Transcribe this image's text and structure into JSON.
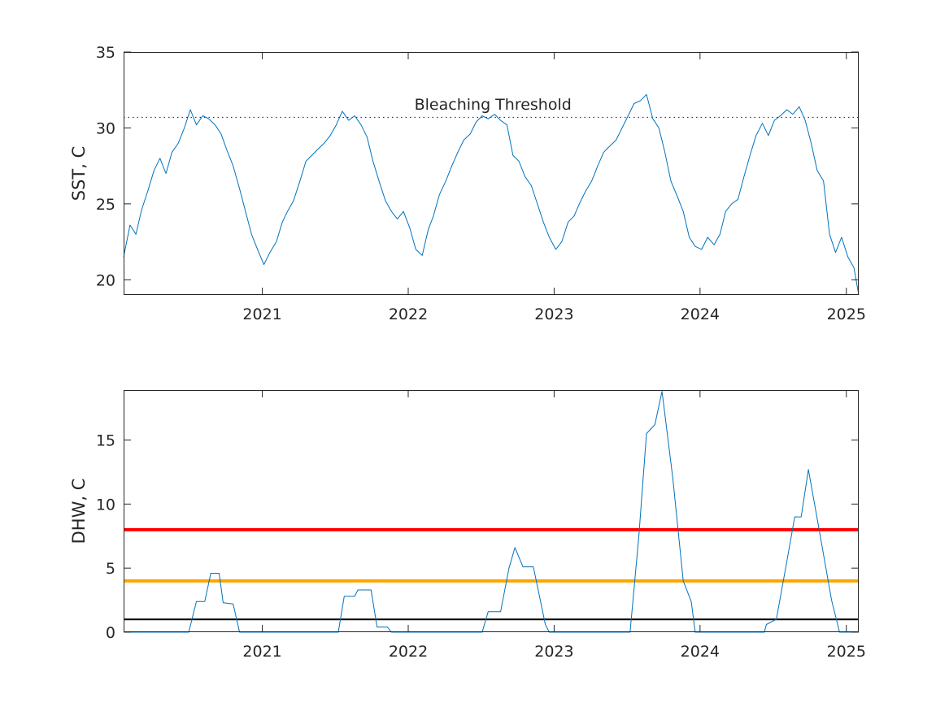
{
  "chart_data": [
    {
      "type": "line",
      "xlabel": "",
      "ylabel": "SST, C",
      "xlim": [
        "2020-01-20",
        "2025-02-01"
      ],
      "ylim": [
        19,
        35
      ],
      "yticks": [
        20,
        25,
        30,
        35
      ],
      "xticks": [
        {
          "value": "2021-01-01",
          "label": "2021"
        },
        {
          "value": "2022-01-01",
          "label": "2022"
        },
        {
          "value": "2023-01-01",
          "label": "2023"
        },
        {
          "value": "2024-01-01",
          "label": "2024"
        },
        {
          "value": "2025-01-01",
          "label": "2025"
        }
      ],
      "grid": false,
      "series": [
        {
          "color": "#0072BD",
          "points": [
            [
              "2020-01-20",
              21.5
            ],
            [
              "2020-02-05",
              23.6
            ],
            [
              "2020-02-20",
              23.0
            ],
            [
              "2020-03-05",
              24.6
            ],
            [
              "2020-03-20",
              25.8
            ],
            [
              "2020-04-05",
              27.2
            ],
            [
              "2020-04-20",
              28.0
            ],
            [
              "2020-05-05",
              27.0
            ],
            [
              "2020-05-20",
              28.4
            ],
            [
              "2020-06-05",
              29.0
            ],
            [
              "2020-06-20",
              30.0
            ],
            [
              "2020-07-05",
              31.2
            ],
            [
              "2020-07-20",
              30.2
            ],
            [
              "2020-08-05",
              30.8
            ],
            [
              "2020-08-20",
              30.6
            ],
            [
              "2020-09-05",
              30.2
            ],
            [
              "2020-09-20",
              29.6
            ],
            [
              "2020-10-05",
              28.5
            ],
            [
              "2020-10-20",
              27.5
            ],
            [
              "2020-11-05",
              26.0
            ],
            [
              "2020-11-20",
              24.5
            ],
            [
              "2020-12-05",
              23.0
            ],
            [
              "2020-12-20",
              22.0
            ],
            [
              "2021-01-05",
              21.0
            ],
            [
              "2021-01-20",
              21.8
            ],
            [
              "2021-02-05",
              22.5
            ],
            [
              "2021-02-20",
              23.8
            ],
            [
              "2021-03-05",
              24.5
            ],
            [
              "2021-03-20",
              25.2
            ],
            [
              "2021-04-05",
              26.5
            ],
            [
              "2021-04-20",
              27.8
            ],
            [
              "2021-05-05",
              28.2
            ],
            [
              "2021-05-20",
              28.6
            ],
            [
              "2021-06-05",
              29.0
            ],
            [
              "2021-06-20",
              29.5
            ],
            [
              "2021-07-05",
              30.2
            ],
            [
              "2021-07-20",
              31.1
            ],
            [
              "2021-08-05",
              30.5
            ],
            [
              "2021-08-20",
              30.8
            ],
            [
              "2021-09-05",
              30.2
            ],
            [
              "2021-09-20",
              29.4
            ],
            [
              "2021-10-05",
              27.8
            ],
            [
              "2021-10-20",
              26.5
            ],
            [
              "2021-11-05",
              25.2
            ],
            [
              "2021-11-20",
              24.5
            ],
            [
              "2021-12-05",
              24.0
            ],
            [
              "2021-12-20",
              24.5
            ],
            [
              "2022-01-05",
              23.4
            ],
            [
              "2022-01-20",
              22.0
            ],
            [
              "2022-02-05",
              21.6
            ],
            [
              "2022-02-20",
              23.3
            ],
            [
              "2022-03-05",
              24.2
            ],
            [
              "2022-03-20",
              25.6
            ],
            [
              "2022-04-05",
              26.5
            ],
            [
              "2022-04-20",
              27.5
            ],
            [
              "2022-05-05",
              28.4
            ],
            [
              "2022-05-20",
              29.2
            ],
            [
              "2022-06-05",
              29.6
            ],
            [
              "2022-06-20",
              30.4
            ],
            [
              "2022-07-05",
              30.8
            ],
            [
              "2022-07-20",
              30.6
            ],
            [
              "2022-08-05",
              30.9
            ],
            [
              "2022-08-20",
              30.5
            ],
            [
              "2022-09-05",
              30.2
            ],
            [
              "2022-09-20",
              28.2
            ],
            [
              "2022-10-05",
              27.8
            ],
            [
              "2022-10-20",
              26.8
            ],
            [
              "2022-11-05",
              26.2
            ],
            [
              "2022-11-20",
              25.0
            ],
            [
              "2022-12-05",
              23.8
            ],
            [
              "2022-12-20",
              22.8
            ],
            [
              "2023-01-05",
              22.0
            ],
            [
              "2023-01-20",
              22.5
            ],
            [
              "2023-02-05",
              23.8
            ],
            [
              "2023-02-20",
              24.2
            ],
            [
              "2023-03-05",
              25.0
            ],
            [
              "2023-03-20",
              25.8
            ],
            [
              "2023-04-05",
              26.5
            ],
            [
              "2023-04-20",
              27.5
            ],
            [
              "2023-05-05",
              28.4
            ],
            [
              "2023-05-20",
              28.8
            ],
            [
              "2023-06-05",
              29.2
            ],
            [
              "2023-06-20",
              30.0
            ],
            [
              "2023-07-05",
              30.8
            ],
            [
              "2023-07-20",
              31.6
            ],
            [
              "2023-08-05",
              31.8
            ],
            [
              "2023-08-20",
              32.2
            ],
            [
              "2023-09-05",
              30.6
            ],
            [
              "2023-09-20",
              30.0
            ],
            [
              "2023-10-05",
              28.4
            ],
            [
              "2023-10-20",
              26.5
            ],
            [
              "2023-11-05",
              25.5
            ],
            [
              "2023-11-20",
              24.5
            ],
            [
              "2023-12-05",
              22.8
            ],
            [
              "2023-12-20",
              22.2
            ],
            [
              "2024-01-05",
              22.0
            ],
            [
              "2024-01-20",
              22.8
            ],
            [
              "2024-02-05",
              22.3
            ],
            [
              "2024-02-20",
              23.0
            ],
            [
              "2024-03-05",
              24.5
            ],
            [
              "2024-03-20",
              25.0
            ],
            [
              "2024-04-05",
              25.3
            ],
            [
              "2024-04-20",
              26.8
            ],
            [
              "2024-05-05",
              28.2
            ],
            [
              "2024-05-20",
              29.5
            ],
            [
              "2024-06-05",
              30.3
            ],
            [
              "2024-06-20",
              29.5
            ],
            [
              "2024-07-05",
              30.5
            ],
            [
              "2024-07-20",
              30.8
            ],
            [
              "2024-08-05",
              31.2
            ],
            [
              "2024-08-20",
              30.9
            ],
            [
              "2024-09-05",
              31.4
            ],
            [
              "2024-09-20",
              30.5
            ],
            [
              "2024-10-05",
              29.0
            ],
            [
              "2024-10-20",
              27.2
            ],
            [
              "2024-11-05",
              26.5
            ],
            [
              "2024-11-20",
              23.0
            ],
            [
              "2024-12-05",
              21.8
            ],
            [
              "2024-12-20",
              22.8
            ],
            [
              "2025-01-05",
              21.5
            ],
            [
              "2025-01-20",
              20.8
            ],
            [
              "2025-02-01",
              19.0
            ]
          ]
        }
      ],
      "reference_lines": [
        {
          "name": "threshold-line",
          "y": 30.7,
          "color": "#0000CD",
          "style": "dotted"
        }
      ],
      "annotations": [
        {
          "text": "Bleaching Threshold",
          "x": "2022-08-01",
          "y": 31.2
        }
      ]
    },
    {
      "type": "line",
      "xlabel": "",
      "ylabel": "DHW, C",
      "xlim": [
        "2020-01-20",
        "2025-02-01"
      ],
      "ylim": [
        0,
        18.9
      ],
      "yticks": [
        0,
        5,
        10,
        15
      ],
      "xticks": [
        {
          "value": "2021-01-01",
          "label": "2021"
        },
        {
          "value": "2022-01-01",
          "label": "2022"
        },
        {
          "value": "2023-01-01",
          "label": "2023"
        },
        {
          "value": "2024-01-01",
          "label": "2024"
        },
        {
          "value": "2025-01-01",
          "label": "2025"
        }
      ],
      "grid": false,
      "series": [
        {
          "color": "#0072BD",
          "points": [
            [
              "2020-01-20",
              0
            ],
            [
              "2020-07-01",
              0
            ],
            [
              "2020-07-20",
              2.4
            ],
            [
              "2020-08-10",
              2.4
            ],
            [
              "2020-08-25",
              4.6
            ],
            [
              "2020-09-15",
              4.6
            ],
            [
              "2020-09-25",
              2.3
            ],
            [
              "2020-10-20",
              2.2
            ],
            [
              "2020-11-05",
              0
            ],
            [
              "2021-07-10",
              0
            ],
            [
              "2021-07-25",
              2.8
            ],
            [
              "2021-08-20",
              2.8
            ],
            [
              "2021-08-28",
              3.3
            ],
            [
              "2021-09-30",
              3.3
            ],
            [
              "2021-10-15",
              0.4
            ],
            [
              "2021-11-10",
              0.4
            ],
            [
              "2021-11-20",
              0
            ],
            [
              "2022-07-05",
              0
            ],
            [
              "2022-07-20",
              1.6
            ],
            [
              "2022-08-20",
              1.6
            ],
            [
              "2022-09-10",
              5.0
            ],
            [
              "2022-09-25",
              6.6
            ],
            [
              "2022-10-15",
              5.1
            ],
            [
              "2022-11-10",
              5.1
            ],
            [
              "2022-12-10",
              0.6
            ],
            [
              "2022-12-20",
              0
            ],
            [
              "2023-07-10",
              0
            ],
            [
              "2023-08-01",
              7.5
            ],
            [
              "2023-08-20",
              15.5
            ],
            [
              "2023-09-10",
              16.2
            ],
            [
              "2023-09-28",
              18.8
            ],
            [
              "2023-10-25",
              12.0
            ],
            [
              "2023-11-20",
              4.0
            ],
            [
              "2023-12-10",
              2.4
            ],
            [
              "2023-12-20",
              0
            ],
            [
              "2024-06-10",
              0
            ],
            [
              "2024-06-15",
              0.6
            ],
            [
              "2024-07-10",
              1.0
            ],
            [
              "2024-08-05",
              5.5
            ],
            [
              "2024-08-25",
              9.0
            ],
            [
              "2024-09-10",
              9.0
            ],
            [
              "2024-09-28",
              12.7
            ],
            [
              "2024-10-25",
              8.0
            ],
            [
              "2024-11-25",
              2.5
            ],
            [
              "2024-12-15",
              0
            ],
            [
              "2025-02-01",
              0
            ]
          ]
        }
      ],
      "reference_lines": [
        {
          "name": "red-alert-line",
          "y": 8,
          "color": "#FF0000",
          "style": "solid"
        },
        {
          "name": "orange-alert-line",
          "y": 4,
          "color": "#FFA500",
          "style": "solid"
        },
        {
          "name": "black-alert-line",
          "y": 1,
          "color": "#000000",
          "style": "solid"
        }
      ],
      "annotations": []
    }
  ]
}
